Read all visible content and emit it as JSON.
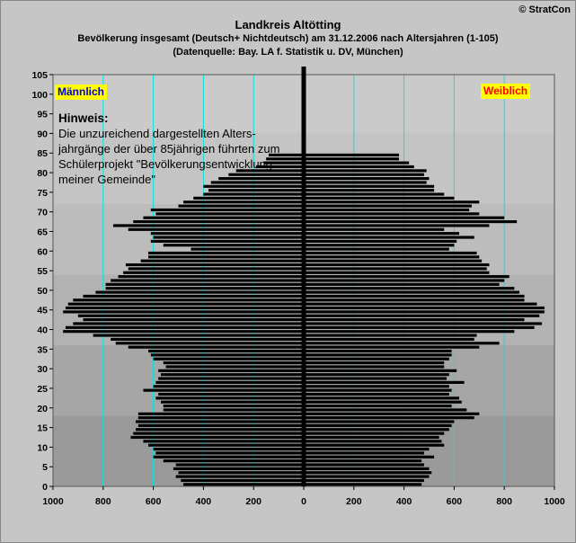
{
  "copyright": "© StratCon",
  "title": "Landkreis Altötting",
  "subtitle": "Bevölkerung  insgesamt (Deutsch+ Nichtdeutsch) am 31.12.2006 nach Altersjahren (1-105)",
  "source": "(Datenquelle: Bay. LA f. Statistik u. DV, München)",
  "labels": {
    "male": "Männlich",
    "female": "Weiblich"
  },
  "note": {
    "heading": "Hinweis:",
    "text": "Die unzureichend dargestellten Alters-jahrgänge der über 85jährigen führten zum Schülerprojekt \"Bevölkerungsentwicklung meiner Gemeinde\""
  },
  "colors": {
    "bars": "#000000",
    "center_axis": "#000000",
    "gridlines": "#00e5e5",
    "male_label": "#0000cc",
    "female_label": "#ff0000",
    "label_bg": "#ffff00"
  },
  "chart_data": {
    "type": "bar",
    "orientation": "horizontal-pyramid",
    "xlim": [
      -1000,
      1000
    ],
    "x_ticks": [
      1000,
      800,
      600,
      400,
      200,
      0,
      200,
      400,
      600,
      800,
      1000
    ],
    "ylim": [
      0,
      105
    ],
    "y_ticks": [
      0,
      5,
      10,
      15,
      20,
      25,
      30,
      35,
      40,
      45,
      50,
      55,
      60,
      65,
      70,
      75,
      80,
      85,
      90,
      95,
      100,
      105
    ],
    "ages": [
      0,
      1,
      2,
      3,
      4,
      5,
      6,
      7,
      8,
      9,
      10,
      11,
      12,
      13,
      14,
      15,
      16,
      17,
      18,
      19,
      20,
      21,
      22,
      23,
      24,
      25,
      26,
      27,
      28,
      29,
      30,
      31,
      32,
      33,
      34,
      35,
      36,
      37,
      38,
      39,
      40,
      41,
      42,
      43,
      44,
      45,
      46,
      47,
      48,
      49,
      50,
      51,
      52,
      53,
      54,
      55,
      56,
      57,
      58,
      59,
      60,
      61,
      62,
      63,
      64,
      65,
      66,
      67,
      68,
      69,
      70,
      71,
      72,
      73,
      74,
      75,
      76,
      77,
      78,
      79,
      80,
      81,
      82,
      83,
      84,
      85
    ],
    "series": [
      {
        "name": "Männlich",
        "values": [
          480,
          490,
          510,
          500,
          520,
          510,
          560,
          600,
          590,
          600,
          620,
          640,
          690,
          680,
          670,
          660,
          670,
          660,
          660,
          560,
          560,
          570,
          590,
          580,
          640,
          600,
          590,
          580,
          570,
          580,
          550,
          560,
          600,
          610,
          620,
          700,
          750,
          770,
          840,
          960,
          950,
          920,
          880,
          900,
          960,
          950,
          940,
          920,
          880,
          830,
          790,
          790,
          770,
          740,
          720,
          700,
          710,
          650,
          620,
          620,
          450,
          560,
          610,
          600,
          610,
          700,
          760,
          680,
          640,
          590,
          610,
          500,
          480,
          440,
          400,
          380,
          400,
          370,
          340,
          300,
          270,
          190,
          160,
          150,
          140,
          0
        ]
      },
      {
        "name": "Weiblich",
        "values": [
          470,
          480,
          500,
          510,
          500,
          480,
          470,
          520,
          480,
          500,
          560,
          550,
          540,
          560,
          580,
          590,
          600,
          680,
          700,
          650,
          590,
          630,
          620,
          580,
          590,
          580,
          640,
          570,
          580,
          610,
          560,
          560,
          580,
          590,
          590,
          700,
          780,
          680,
          690,
          840,
          920,
          950,
          880,
          940,
          960,
          960,
          930,
          880,
          880,
          860,
          840,
          780,
          800,
          820,
          740,
          730,
          740,
          710,
          700,
          690,
          580,
          600,
          610,
          680,
          620,
          560,
          740,
          850,
          800,
          700,
          660,
          670,
          700,
          600,
          560,
          520,
          520,
          490,
          500,
          480,
          490,
          440,
          420,
          380,
          380,
          0
        ]
      }
    ]
  }
}
